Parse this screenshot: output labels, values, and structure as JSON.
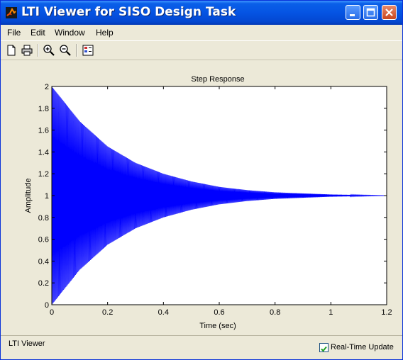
{
  "window": {
    "title": "LTI Viewer for SISO Design Task"
  },
  "menu": [
    "File",
    "Edit",
    "Window",
    "Help"
  ],
  "toolbar": {
    "icons": [
      "new-icon",
      "print-icon",
      "zoom-in-icon",
      "zoom-out-icon",
      "plot-config-icon"
    ]
  },
  "colors": {
    "accent": "#0554e3",
    "series": "#0000ff",
    "face": "#ece9d8"
  },
  "chart_data": {
    "type": "line",
    "title": "Step Response",
    "xlabel": "Time (sec)",
    "ylabel": "Amplitude",
    "xlim": [
      0,
      1.2
    ],
    "ylim": [
      0,
      2
    ],
    "xticks": [
      "0",
      "0.2",
      "0.4",
      "0.6",
      "0.8",
      "1",
      "1.2"
    ],
    "yticks": [
      "0",
      "0.2",
      "0.4",
      "0.6",
      "0.8",
      "1",
      "1.2",
      "1.4",
      "1.6",
      "1.8",
      "2"
    ],
    "grid": false,
    "series": [
      {
        "color": "#0000ff",
        "description": "oscillating step response decaying to 1",
        "upper_envelope": {
          "x": [
            0,
            0.1,
            0.2,
            0.3,
            0.4,
            0.5,
            0.6,
            0.7,
            0.8,
            0.9,
            1.0,
            1.1,
            1.2
          ],
          "y": [
            2.0,
            1.68,
            1.45,
            1.3,
            1.2,
            1.13,
            1.08,
            1.05,
            1.03,
            1.02,
            1.01,
            1.005,
            1.0
          ]
        },
        "lower_envelope": {
          "x": [
            0,
            0.1,
            0.2,
            0.3,
            0.4,
            0.5,
            0.6,
            0.7,
            0.8,
            0.9,
            1.0,
            1.1,
            1.2
          ],
          "y": [
            0.0,
            0.32,
            0.55,
            0.7,
            0.8,
            0.87,
            0.92,
            0.95,
            0.97,
            0.98,
            0.99,
            0.995,
            1.0
          ]
        },
        "final_value": 1.0
      }
    ]
  },
  "status": {
    "text": "LTI Viewer",
    "realtime_label": "Real-Time Update",
    "realtime_checked": true
  }
}
